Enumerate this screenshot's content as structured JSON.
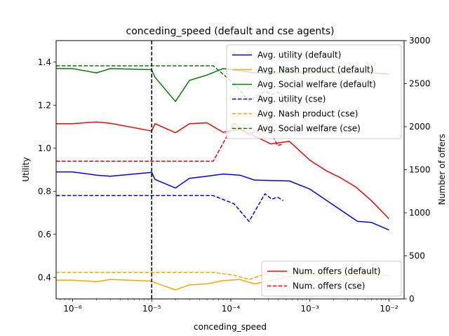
{
  "chart_data": {
    "type": "line",
    "title": "conceding_speed (default and cse agents)",
    "xlabel": "conceding_speed",
    "ylabel_left": "Utility",
    "ylabel_right": "Number of offers",
    "x_scale": "log",
    "xlim": [
      6.2e-07,
      0.0155
    ],
    "ylim_left": [
      0.3,
      1.5
    ],
    "ylim_right": [
      0,
      3000
    ],
    "x_ticks": [
      {
        "value": 1e-06,
        "label": "10⁻⁶"
      },
      {
        "value": 1e-05,
        "label": "10⁻⁵"
      },
      {
        "value": 0.0001,
        "label": "10⁻⁴"
      },
      {
        "value": 0.001,
        "label": "10⁻³"
      },
      {
        "value": 0.01,
        "label": "10⁻²"
      }
    ],
    "y_ticks_left": [
      0.4,
      0.6,
      0.8,
      1.0,
      1.2,
      1.4
    ],
    "y_tick_labels_left": [
      "0.4",
      "0.6",
      "0.8",
      "1.0",
      "1.2",
      "1.4"
    ],
    "y_ticks_right": [
      0,
      500,
      1000,
      1500,
      2000,
      2500,
      3000
    ],
    "y_tick_labels_right": [
      "0",
      "500",
      "1000",
      "1500",
      "2000",
      "2500",
      "3000"
    ],
    "vline_x": 1e-05,
    "grid": false,
    "legend_left_placement": "top-right",
    "legend_right_placement": "lower-right",
    "series": [
      {
        "name": "Avg. utility (default)",
        "axis": "left",
        "color": "#0000ff",
        "style": "solid",
        "x": [
          6.2e-07,
          1e-06,
          2e-06,
          3e-06,
          1e-05,
          1.1e-05,
          2e-05,
          3e-05,
          5e-05,
          8e-05,
          0.00013,
          0.0002,
          0.00055,
          0.001,
          0.002,
          0.004,
          0.006,
          0.01
        ],
        "y": [
          0.89,
          0.89,
          0.875,
          0.87,
          0.888,
          0.855,
          0.815,
          0.86,
          0.87,
          0.88,
          0.875,
          0.852,
          0.848,
          0.81,
          0.735,
          0.66,
          0.655,
          0.62
        ]
      },
      {
        "name": "Avg. Nash product (default)",
        "axis": "left",
        "color": "#ffa500",
        "style": "solid",
        "x": [
          6.2e-07,
          1e-06,
          2e-06,
          3e-06,
          1e-05,
          1.1e-05,
          2e-05,
          3e-05,
          5e-05,
          8e-05,
          0.00013,
          0.0002,
          0.00055,
          0.001,
          0.002,
          0.004,
          0.006,
          0.01
        ],
        "y": [
          0.387,
          0.387,
          0.38,
          0.39,
          0.383,
          0.375,
          0.342,
          0.365,
          0.37,
          0.385,
          0.39,
          0.37,
          0.405,
          0.41,
          0.41,
          0.41,
          0.41,
          0.41
        ]
      },
      {
        "name": "Avg. Social welfare (default)",
        "axis": "left",
        "color": "#008000",
        "style": "solid",
        "x": [
          6.2e-07,
          1e-06,
          2e-06,
          3e-06,
          1e-05,
          1.1e-05,
          2e-05,
          3e-05,
          5e-05,
          8e-05,
          0.00013,
          0.0002,
          0.00055,
          0.001,
          0.002,
          0.004,
          0.006,
          0.01
        ],
        "y": [
          1.37,
          1.37,
          1.35,
          1.37,
          1.365,
          1.33,
          1.217,
          1.315,
          1.34,
          1.37,
          1.36,
          1.35,
          1.35,
          1.35,
          1.35,
          1.35,
          1.35,
          1.345
        ]
      },
      {
        "name": "Avg. utility (cse)",
        "axis": "left",
        "color": "#0000ff",
        "style": "dashed",
        "x": [
          6.2e-07,
          1e-06,
          1e-05,
          6e-05,
          0.00011,
          0.00017,
          0.00027,
          0.00033,
          0.00039,
          0.00046
        ],
        "y": [
          0.78,
          0.78,
          0.78,
          0.78,
          0.742,
          0.66,
          0.788,
          0.763,
          0.773,
          0.757
        ]
      },
      {
        "name": "Avg. Nash product (cse)",
        "axis": "left",
        "color": "#ffa500",
        "style": "dashed",
        "x": [
          6.2e-07,
          1e-06,
          1e-05,
          6e-05,
          0.00011,
          0.00017,
          0.00027,
          0.00033,
          0.00039,
          0.00046
        ],
        "y": [
          0.423,
          0.423,
          0.423,
          0.423,
          0.41,
          0.39,
          0.415,
          0.41,
          0.412,
          0.405
        ]
      },
      {
        "name": "Avg. Social welfare (cse)",
        "axis": "left",
        "color": "#008000",
        "style": "dashed",
        "x": [
          6.2e-07,
          1e-06,
          1e-05,
          6e-05,
          0.00011,
          0.00017,
          0.00027,
          0.00033,
          0.00039,
          0.00046
        ],
        "y": [
          1.383,
          1.383,
          1.383,
          1.383,
          1.3,
          1.22,
          1.265,
          1.25,
          1.26,
          1.245
        ]
      },
      {
        "name": "Num. offers (default)",
        "axis": "right",
        "color": "#ff0000",
        "style": "solid",
        "x": [
          6.2e-07,
          1e-06,
          2e-06,
          3e-06,
          1e-05,
          1.1e-05,
          2e-05,
          3e-05,
          5e-05,
          8e-05,
          0.00013,
          0.0002,
          0.00032,
          0.00055,
          0.001,
          0.0016,
          0.0024,
          0.0038,
          0.006,
          0.01
        ],
        "y": [
          2035,
          2035,
          2055,
          2040,
          1950,
          2035,
          1930,
          2035,
          2045,
          1935,
          1970,
          1890,
          1800,
          1830,
          1610,
          1490,
          1410,
          1300,
          1140,
          930
        ]
      },
      {
        "name": "Num. offers (cse)",
        "axis": "right",
        "color": "#ff0000",
        "style": "dashed",
        "x": [
          6.2e-07,
          1e-06,
          1e-05,
          6e-05,
          0.00011,
          0.00017,
          0.00027,
          0.00033,
          0.00039,
          0.00046
        ],
        "y": [
          1600,
          1600,
          1600,
          1600,
          2040,
          1910,
          2000,
          1920,
          1780,
          1800
        ]
      }
    ]
  }
}
